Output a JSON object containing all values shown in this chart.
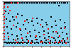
{
  "background_color": "#87ceeb",
  "fig_bg": "#ffffff",
  "black_points_top_row": [
    [
      0.01,
      0.97
    ],
    [
      0.03,
      0.97
    ],
    [
      0.05,
      0.97
    ],
    [
      0.07,
      0.97
    ],
    [
      0.09,
      0.97
    ],
    [
      0.11,
      0.97
    ],
    [
      0.14,
      0.97
    ],
    [
      0.17,
      0.97
    ],
    [
      0.19,
      0.97
    ],
    [
      0.22,
      0.97
    ],
    [
      0.25,
      0.97
    ],
    [
      0.28,
      0.97
    ],
    [
      0.31,
      0.97
    ],
    [
      0.34,
      0.97
    ],
    [
      0.37,
      0.97
    ],
    [
      0.4,
      0.97
    ],
    [
      0.43,
      0.97
    ],
    [
      0.46,
      0.97
    ],
    [
      0.49,
      0.97
    ],
    [
      0.52,
      0.97
    ],
    [
      0.55,
      0.97
    ],
    [
      0.58,
      0.97
    ],
    [
      0.61,
      0.97
    ],
    [
      0.64,
      0.97
    ],
    [
      0.67,
      0.97
    ],
    [
      0.7,
      0.97
    ],
    [
      0.73,
      0.97
    ],
    [
      0.76,
      0.97
    ],
    [
      0.79,
      0.97
    ],
    [
      0.82,
      0.97
    ],
    [
      0.85,
      0.97
    ],
    [
      0.88,
      0.97
    ],
    [
      0.91,
      0.97
    ],
    [
      0.94,
      0.97
    ],
    [
      0.97,
      0.97
    ]
  ],
  "black_points_bottom_dense": [
    [
      0.01,
      0.07
    ],
    [
      0.03,
      0.07
    ],
    [
      0.05,
      0.06
    ],
    [
      0.07,
      0.07
    ],
    [
      0.09,
      0.06
    ],
    [
      0.11,
      0.07
    ],
    [
      0.13,
      0.06
    ],
    [
      0.15,
      0.07
    ],
    [
      0.17,
      0.06
    ],
    [
      0.19,
      0.07
    ],
    [
      0.21,
      0.06
    ],
    [
      0.23,
      0.07
    ],
    [
      0.25,
      0.06
    ],
    [
      0.27,
      0.07
    ],
    [
      0.29,
      0.06
    ],
    [
      0.32,
      0.07
    ],
    [
      0.35,
      0.06
    ],
    [
      0.38,
      0.07
    ],
    [
      0.41,
      0.06
    ],
    [
      0.44,
      0.07
    ],
    [
      0.47,
      0.06
    ],
    [
      0.5,
      0.07
    ],
    [
      0.53,
      0.06
    ],
    [
      0.56,
      0.07
    ],
    [
      0.59,
      0.06
    ],
    [
      0.62,
      0.07
    ],
    [
      0.65,
      0.06
    ],
    [
      0.68,
      0.07
    ],
    [
      0.71,
      0.06
    ],
    [
      0.74,
      0.07
    ],
    [
      0.77,
      0.06
    ],
    [
      0.8,
      0.07
    ],
    [
      0.83,
      0.06
    ],
    [
      0.86,
      0.07
    ],
    [
      0.89,
      0.06
    ],
    [
      0.92,
      0.07
    ],
    [
      0.95,
      0.06
    ],
    [
      0.98,
      0.07
    ]
  ],
  "black_points_scatter": [
    [
      0.84,
      0.91
    ],
    [
      0.03,
      0.77
    ],
    [
      0.07,
      0.73
    ],
    [
      0.14,
      0.65
    ],
    [
      0.21,
      0.72
    ],
    [
      0.28,
      0.68
    ],
    [
      0.35,
      0.58
    ],
    [
      0.43,
      0.55
    ],
    [
      0.51,
      0.61
    ],
    [
      0.58,
      0.58
    ],
    [
      0.65,
      0.52
    ],
    [
      0.72,
      0.65
    ],
    [
      0.79,
      0.55
    ],
    [
      0.86,
      0.58
    ],
    [
      0.93,
      0.52
    ],
    [
      0.04,
      0.6
    ],
    [
      0.1,
      0.55
    ],
    [
      0.16,
      0.58
    ],
    [
      0.22,
      0.5
    ],
    [
      0.3,
      0.48
    ],
    [
      0.38,
      0.52
    ],
    [
      0.45,
      0.45
    ],
    [
      0.52,
      0.5
    ],
    [
      0.59,
      0.43
    ],
    [
      0.66,
      0.48
    ],
    [
      0.73,
      0.42
    ],
    [
      0.8,
      0.45
    ],
    [
      0.87,
      0.4
    ],
    [
      0.94,
      0.42
    ],
    [
      0.05,
      0.42
    ],
    [
      0.12,
      0.38
    ],
    [
      0.19,
      0.42
    ],
    [
      0.26,
      0.35
    ],
    [
      0.33,
      0.38
    ],
    [
      0.4,
      0.32
    ],
    [
      0.47,
      0.35
    ],
    [
      0.54,
      0.3
    ],
    [
      0.61,
      0.33
    ],
    [
      0.68,
      0.28
    ],
    [
      0.75,
      0.32
    ],
    [
      0.82,
      0.28
    ],
    [
      0.89,
      0.3
    ],
    [
      0.96,
      0.27
    ],
    [
      0.06,
      0.28
    ],
    [
      0.13,
      0.25
    ],
    [
      0.2,
      0.22
    ],
    [
      0.27,
      0.25
    ],
    [
      0.34,
      0.2
    ],
    [
      0.41,
      0.22
    ],
    [
      0.48,
      0.18
    ],
    [
      0.55,
      0.2
    ],
    [
      0.62,
      0.17
    ],
    [
      0.69,
      0.2
    ],
    [
      0.76,
      0.17
    ],
    [
      0.83,
      0.18
    ],
    [
      0.9,
      0.15
    ],
    [
      0.97,
      0.17
    ],
    [
      0.08,
      0.15
    ],
    [
      0.15,
      0.13
    ],
    [
      0.22,
      0.15
    ],
    [
      0.29,
      0.12
    ],
    [
      0.36,
      0.14
    ],
    [
      0.43,
      0.11
    ],
    [
      0.5,
      0.13
    ],
    [
      0.57,
      0.11
    ],
    [
      0.64,
      0.12
    ],
    [
      0.71,
      0.1
    ],
    [
      0.78,
      0.12
    ],
    [
      0.85,
      0.1
    ],
    [
      0.92,
      0.11
    ]
  ],
  "red_points": [
    [
      0.01,
      0.93
    ],
    [
      0.01,
      0.87
    ],
    [
      0.01,
      0.8
    ],
    [
      0.01,
      0.73
    ],
    [
      0.01,
      0.65
    ],
    [
      0.01,
      0.58
    ],
    [
      0.01,
      0.5
    ],
    [
      0.01,
      0.43
    ],
    [
      0.01,
      0.35
    ],
    [
      0.01,
      0.27
    ],
    [
      0.01,
      0.2
    ],
    [
      0.01,
      0.13
    ],
    [
      0.12,
      0.97
    ],
    [
      0.22,
      0.97
    ],
    [
      0.06,
      0.87
    ],
    [
      0.1,
      0.8
    ],
    [
      0.19,
      0.65
    ],
    [
      0.32,
      0.55
    ],
    [
      0.44,
      0.62
    ],
    [
      0.56,
      0.48
    ],
    [
      0.68,
      0.38
    ],
    [
      0.8,
      0.32
    ],
    [
      0.92,
      0.4
    ],
    [
      0.15,
      0.45
    ],
    [
      0.25,
      0.38
    ],
    [
      0.37,
      0.28
    ],
    [
      0.49,
      0.22
    ],
    [
      0.61,
      0.25
    ],
    [
      0.73,
      0.18
    ],
    [
      0.85,
      0.22
    ],
    [
      0.97,
      0.15
    ],
    [
      0.08,
      0.2
    ],
    [
      0.18,
      0.12
    ],
    [
      0.28,
      0.17
    ],
    [
      0.38,
      0.1
    ],
    [
      0.48,
      0.14
    ],
    [
      0.58,
      0.09
    ],
    [
      0.68,
      0.13
    ],
    [
      0.78,
      0.08
    ],
    [
      0.88,
      0.11
    ],
    [
      0.2,
      0.07
    ],
    [
      0.3,
      0.07
    ],
    [
      0.42,
      0.06
    ],
    [
      0.56,
      0.07
    ],
    [
      0.7,
      0.06
    ],
    [
      0.84,
      0.07
    ],
    [
      0.95,
      0.06
    ]
  ],
  "marker_size": 3,
  "xlim": [
    0,
    1
  ],
  "ylim": [
    0,
    1
  ]
}
